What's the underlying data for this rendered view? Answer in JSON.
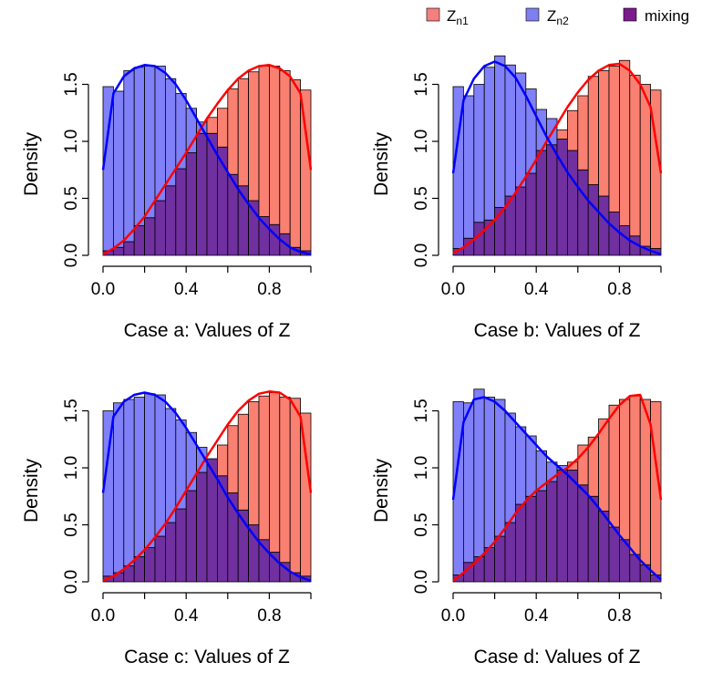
{
  "legend": {
    "items": [
      {
        "label_main": "Z",
        "label_sub": "n1",
        "color": "#f47f7f"
      },
      {
        "label_main": "Z",
        "label_sub": "n2",
        "color": "#7f7ff0"
      },
      {
        "label_main": "mixing",
        "label_sub": "",
        "color": "#7b1a8c"
      }
    ]
  },
  "colors": {
    "zn1_fill": "#fa8072",
    "zn2_fill": "#8080f8",
    "mixing_fill": "#7030a0",
    "zn1_line": "#ff0000",
    "zn2_line": "#0000ff"
  },
  "chart_data": [
    {
      "type": "bar",
      "xlabel": "Case a: Values of Z",
      "ylabel": "Density",
      "xlim": [
        0,
        1
      ],
      "ylim": [
        0,
        1.6
      ],
      "xticks": [
        "0.0",
        "0.4",
        "0.8"
      ],
      "yticks": [
        "0.0",
        "0.5",
        "1.0",
        "1.5"
      ],
      "bin_width": 0.05,
      "bins_start": [
        0.0,
        0.05,
        0.1,
        0.15,
        0.2,
        0.25,
        0.3,
        0.35,
        0.4,
        0.45,
        0.5,
        0.55,
        0.6,
        0.65,
        0.7,
        0.75,
        0.8,
        0.85,
        0.9,
        0.95
      ],
      "series": [
        {
          "name": "Zn1",
          "values": [
            0.04,
            0.07,
            0.12,
            0.26,
            0.33,
            0.48,
            0.61,
            0.76,
            0.9,
            1.07,
            1.21,
            1.29,
            1.46,
            1.55,
            1.61,
            1.66,
            1.66,
            1.62,
            1.54,
            1.45
          ]
        },
        {
          "name": "Zn2",
          "values": [
            1.48,
            1.44,
            1.62,
            1.65,
            1.66,
            1.66,
            1.55,
            1.42,
            1.29,
            1.17,
            1.07,
            0.95,
            0.71,
            0.61,
            0.48,
            0.34,
            0.27,
            0.19,
            0.07,
            0.04
          ]
        }
      ],
      "density_lines": [
        {
          "name": "Zn1",
          "values": [
            0.01,
            0.06,
            0.13,
            0.23,
            0.34,
            0.48,
            0.62,
            0.76,
            0.9,
            1.05,
            1.2,
            1.33,
            1.45,
            1.55,
            1.62,
            1.66,
            1.67,
            1.64,
            1.57,
            1.42,
            0.75
          ]
        },
        {
          "name": "Zn2",
          "values": [
            0.75,
            1.42,
            1.57,
            1.64,
            1.67,
            1.66,
            1.6,
            1.5,
            1.36,
            1.2,
            1.04,
            0.88,
            0.73,
            0.58,
            0.45,
            0.33,
            0.23,
            0.14,
            0.07,
            0.03,
            0.01
          ]
        }
      ]
    },
    {
      "type": "bar",
      "xlabel": "Case b: Values of Z",
      "ylabel": "Density",
      "xlim": [
        0,
        1
      ],
      "ylim": [
        0,
        1.6
      ],
      "xticks": [
        "0.0",
        "0.4",
        "0.8"
      ],
      "yticks": [
        "0.0",
        "0.5",
        "1.0",
        "1.5"
      ],
      "bin_width": 0.05,
      "bins_start": [
        0.0,
        0.05,
        0.1,
        0.15,
        0.2,
        0.25,
        0.3,
        0.35,
        0.4,
        0.45,
        0.5,
        0.55,
        0.6,
        0.65,
        0.7,
        0.75,
        0.8,
        0.85,
        0.9,
        0.95
      ],
      "series": [
        {
          "name": "Zn1",
          "values": [
            0.06,
            0.15,
            0.29,
            0.31,
            0.42,
            0.52,
            0.6,
            0.72,
            0.92,
            0.97,
            1.1,
            1.27,
            1.4,
            1.57,
            1.62,
            1.66,
            1.71,
            1.58,
            1.5,
            1.45
          ]
        },
        {
          "name": "Zn2",
          "values": [
            1.48,
            1.4,
            1.5,
            1.65,
            1.75,
            1.67,
            1.6,
            1.46,
            1.28,
            1.2,
            1.02,
            0.92,
            0.75,
            0.62,
            0.52,
            0.38,
            0.26,
            0.17,
            0.08,
            0.06
          ]
        }
      ],
      "density_lines": [
        {
          "name": "Zn1",
          "values": [
            0.02,
            0.07,
            0.14,
            0.22,
            0.31,
            0.42,
            0.55,
            0.69,
            0.84,
            1.0,
            1.15,
            1.3,
            1.43,
            1.54,
            1.62,
            1.67,
            1.68,
            1.62,
            1.5,
            1.3,
            0.72
          ]
        },
        {
          "name": "Zn2",
          "values": [
            0.72,
            1.36,
            1.55,
            1.66,
            1.7,
            1.66,
            1.56,
            1.4,
            1.22,
            1.04,
            0.88,
            0.73,
            0.6,
            0.48,
            0.38,
            0.28,
            0.2,
            0.13,
            0.08,
            0.04,
            0.01
          ]
        }
      ]
    },
    {
      "type": "bar",
      "xlabel": "Case c: Values of Z",
      "ylabel": "Density",
      "xlim": [
        0,
        1
      ],
      "ylim": [
        0,
        1.6
      ],
      "xticks": [
        "0.0",
        "0.4",
        "0.8"
      ],
      "yticks": [
        "0.0",
        "0.5",
        "1.0",
        "1.5"
      ],
      "bin_width": 0.05,
      "bins_start": [
        0.0,
        0.05,
        0.1,
        0.15,
        0.2,
        0.25,
        0.3,
        0.35,
        0.4,
        0.45,
        0.5,
        0.55,
        0.6,
        0.65,
        0.7,
        0.75,
        0.8,
        0.85,
        0.9,
        0.95
      ],
      "series": [
        {
          "name": "Zn1",
          "values": [
            0.05,
            0.08,
            0.14,
            0.22,
            0.3,
            0.4,
            0.52,
            0.64,
            0.8,
            0.96,
            1.08,
            1.2,
            1.37,
            1.47,
            1.58,
            1.63,
            1.66,
            1.62,
            1.61,
            1.48
          ]
        },
        {
          "name": "Zn2",
          "values": [
            1.5,
            1.57,
            1.6,
            1.62,
            1.65,
            1.64,
            1.52,
            1.42,
            1.31,
            1.18,
            1.08,
            0.93,
            0.78,
            0.63,
            0.5,
            0.37,
            0.26,
            0.17,
            0.08,
            0.05
          ]
        }
      ],
      "density_lines": [
        {
          "name": "Zn1",
          "values": [
            0.01,
            0.05,
            0.11,
            0.19,
            0.28,
            0.39,
            0.51,
            0.65,
            0.8,
            0.95,
            1.1,
            1.24,
            1.38,
            1.5,
            1.59,
            1.65,
            1.67,
            1.66,
            1.6,
            1.45,
            0.78
          ]
        },
        {
          "name": "Zn2",
          "values": [
            0.78,
            1.45,
            1.58,
            1.64,
            1.66,
            1.64,
            1.58,
            1.48,
            1.35,
            1.2,
            1.05,
            0.9,
            0.74,
            0.6,
            0.47,
            0.35,
            0.25,
            0.16,
            0.09,
            0.04,
            0.01
          ]
        }
      ]
    },
    {
      "type": "bar",
      "xlabel": "Case d: Values of Z",
      "ylabel": "Density",
      "xlim": [
        0,
        1
      ],
      "ylim": [
        0,
        1.6
      ],
      "xticks": [
        "0.0",
        "0.4",
        "0.8"
      ],
      "yticks": [
        "0.0",
        "0.5",
        "1.0",
        "1.5"
      ],
      "bin_width": 0.05,
      "bins_start": [
        0.0,
        0.05,
        0.1,
        0.15,
        0.2,
        0.25,
        0.3,
        0.35,
        0.4,
        0.45,
        0.5,
        0.55,
        0.6,
        0.65,
        0.7,
        0.75,
        0.8,
        0.85,
        0.9,
        0.95
      ],
      "series": [
        {
          "name": "Zn1",
          "values": [
            0.06,
            0.17,
            0.22,
            0.3,
            0.4,
            0.52,
            0.68,
            0.75,
            0.8,
            0.88,
            0.98,
            1.05,
            1.2,
            1.27,
            1.43,
            1.55,
            1.6,
            1.63,
            1.6,
            1.58
          ]
        },
        {
          "name": "Zn2",
          "values": [
            1.58,
            1.57,
            1.69,
            1.62,
            1.6,
            1.48,
            1.36,
            1.28,
            1.15,
            1.05,
            1.02,
            0.98,
            0.85,
            0.75,
            0.62,
            0.48,
            0.37,
            0.24,
            0.15,
            0.06
          ]
        }
      ],
      "density_lines": [
        {
          "name": "Zn1",
          "values": [
            0.01,
            0.08,
            0.16,
            0.25,
            0.35,
            0.47,
            0.6,
            0.71,
            0.8,
            0.87,
            0.94,
            1.0,
            1.08,
            1.18,
            1.3,
            1.43,
            1.55,
            1.63,
            1.64,
            1.38,
            0.72
          ]
        },
        {
          "name": "Zn2",
          "values": [
            0.72,
            1.4,
            1.6,
            1.62,
            1.58,
            1.5,
            1.4,
            1.3,
            1.2,
            1.1,
            1.02,
            0.94,
            0.85,
            0.76,
            0.65,
            0.53,
            0.41,
            0.3,
            0.19,
            0.1,
            0.02
          ]
        }
      ]
    }
  ]
}
